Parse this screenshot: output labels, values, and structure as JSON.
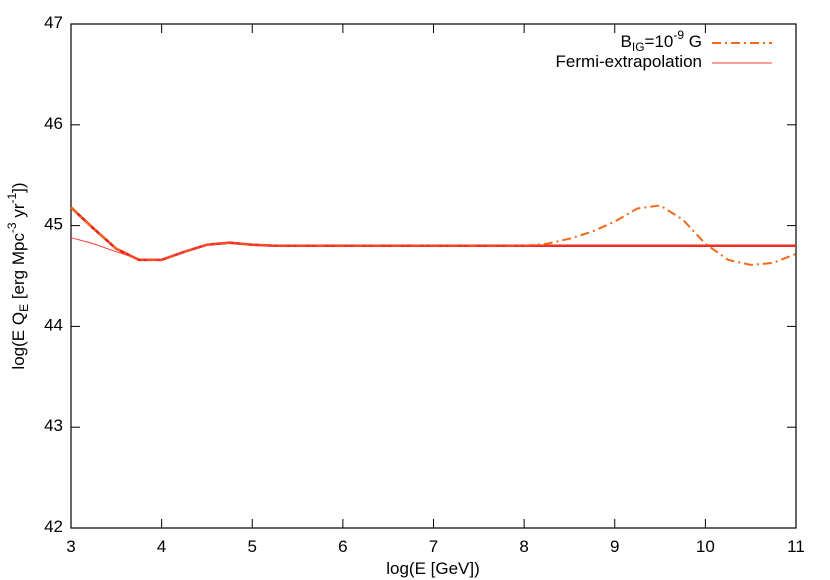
{
  "chart_data": {
    "type": "line",
    "x_label": "log(E [GeV])",
    "y_label": "log(E Q_{E} [erg Mpc^{-3} yr^{-1}])",
    "x": [
      3,
      3.25,
      3.5,
      3.75,
      4,
      4.25,
      4.5,
      4.75,
      5,
      5.25,
      5.5,
      5.75,
      6,
      6.25,
      6.5,
      6.75,
      7,
      7.25,
      7.5,
      7.75,
      8,
      8.25,
      8.5,
      8.75,
      9,
      9.25,
      9.5,
      9.75,
      10,
      10.25,
      10.5,
      10.75,
      11
    ],
    "series": [
      {
        "color": "#e8201a",
        "width": 2.6,
        "dash": "solid",
        "values": [
          45.18,
          44.97,
          44.77,
          44.66,
          44.66,
          44.74,
          44.81,
          44.83,
          44.81,
          44.8,
          44.8,
          44.8,
          44.8,
          44.8,
          44.8,
          44.8,
          44.8,
          44.8,
          44.8,
          44.8,
          44.8,
          44.8,
          44.8,
          44.8,
          44.8,
          44.8,
          44.8,
          44.8,
          44.8,
          44.8,
          44.8,
          44.8,
          44.8
        ]
      },
      {
        "name": "B_{IG}=10^{-9} G",
        "color": "#ef6a1a",
        "width": 2,
        "dash": "dashdot",
        "values": [
          45.18,
          44.97,
          44.77,
          44.66,
          44.66,
          44.74,
          44.81,
          44.83,
          44.81,
          44.8,
          44.8,
          44.8,
          44.8,
          44.8,
          44.8,
          44.8,
          44.8,
          44.8,
          44.8,
          44.8,
          44.8,
          44.82,
          44.87,
          44.94,
          45.04,
          45.17,
          45.2,
          45.06,
          44.82,
          44.66,
          44.61,
          44.63,
          44.72
        ]
      },
      {
        "name": "Fermi-extrapolation",
        "color": "#ff3b30",
        "width": 1,
        "dash": "solid",
        "values": [
          44.88,
          44.82,
          44.74,
          44.67,
          44.66,
          44.74,
          44.81,
          44.83,
          44.81,
          44.8,
          44.8,
          44.8,
          44.8,
          44.8,
          44.8,
          44.8,
          44.8,
          44.8,
          44.8,
          44.8,
          44.8,
          44.8,
          44.8,
          44.8,
          44.8,
          44.8,
          44.8,
          44.8,
          44.8,
          44.8,
          44.8,
          44.8,
          44.8
        ]
      }
    ],
    "xlim": [
      3,
      11
    ],
    "xticks": [
      3,
      4,
      5,
      6,
      7,
      8,
      9,
      10,
      11
    ],
    "ylim": [
      42,
      47
    ],
    "yticks": [
      42,
      43,
      44,
      45,
      46,
      47
    ],
    "legend": "top-right"
  }
}
